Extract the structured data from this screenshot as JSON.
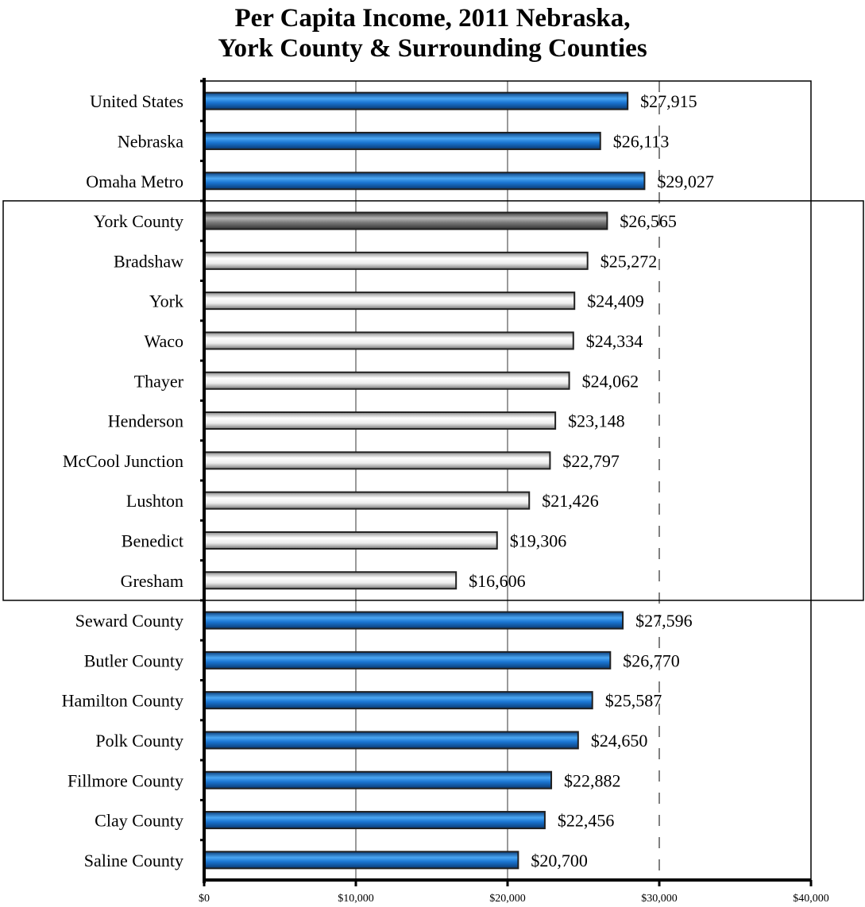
{
  "chart_data": {
    "type": "bar",
    "orientation": "horizontal",
    "title": [
      "Per Capita Income, 2011 Nebraska,",
      "York County & Surrounding Counties"
    ],
    "xlabel": "",
    "ylabel": "",
    "xlim": [
      0,
      40000
    ],
    "xticks": [
      0,
      10000,
      20000,
      30000,
      40000
    ],
    "xtick_labels": [
      "$0",
      "$10,000",
      "$20,000",
      "$30,000",
      "$40,000"
    ],
    "grid": "vertical gridlines, dashed line at $30,000",
    "categories": [
      "United States",
      "Nebraska",
      "Omaha Metro",
      "York County",
      "Bradshaw",
      "York",
      "Waco",
      "Thayer",
      "Henderson",
      "McCool Junction",
      "Lushton",
      "Benedict",
      "Gresham",
      "Seward County",
      "Butler County",
      "Hamilton County",
      "Polk County",
      "Fillmore County",
      "Clay County",
      "Saline County"
    ],
    "values": [
      27915,
      26113,
      29027,
      26565,
      25272,
      24409,
      24334,
      24062,
      23148,
      22797,
      21426,
      19306,
      16606,
      27596,
      26770,
      25587,
      24650,
      22882,
      22456,
      20700
    ],
    "value_labels": [
      "$27,915",
      "$26,113",
      "$29,027",
      "$26,565",
      "$25,272",
      "$24,409",
      "$24,334",
      "$24,062",
      "$23,148",
      "$22,797",
      "$21,426",
      "$19,306",
      "$16,606",
      "$27,596",
      "$26,770",
      "$25,587",
      "$24,650",
      "$22,882",
      "$22,456",
      "$20,700"
    ],
    "bar_styles": [
      "blue",
      "blue",
      "blue",
      "gray",
      "white",
      "white",
      "white",
      "white",
      "white",
      "white",
      "white",
      "white",
      "white",
      "blue",
      "blue",
      "blue",
      "blue",
      "blue",
      "blue",
      "blue"
    ],
    "colors": {
      "blue": "#1a75d2",
      "gray": "#7a7a7a",
      "white": "#f2f2f2",
      "bar_outline": "#202020"
    }
  }
}
